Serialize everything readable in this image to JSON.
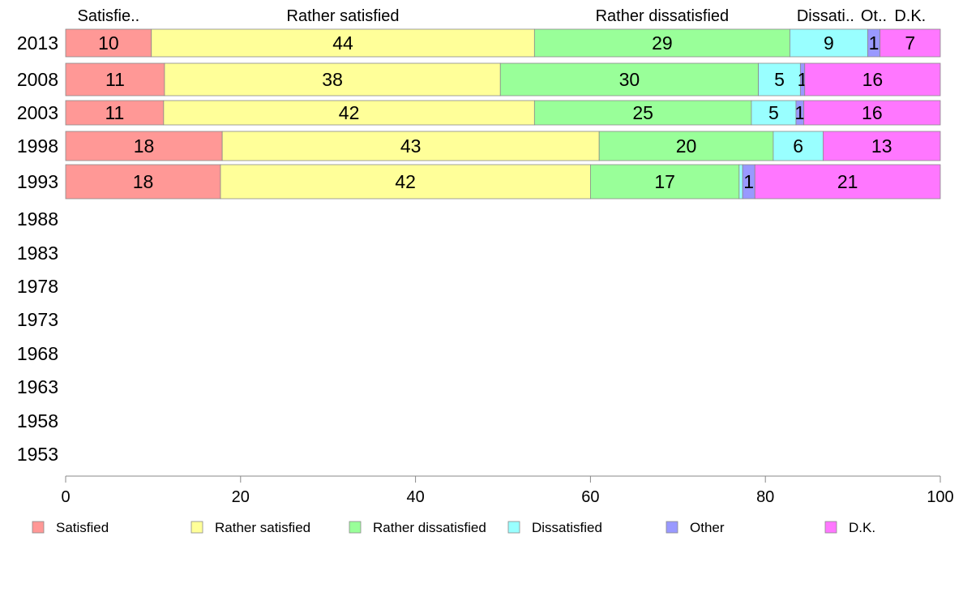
{
  "chart_data": {
    "type": "bar",
    "orientation": "horizontal",
    "stacked": true,
    "categories": [
      "2013",
      "2008",
      "2003",
      "1998",
      "1993",
      "1988",
      "1983",
      "1978",
      "1973",
      "1968",
      "1963",
      "1958",
      "1953"
    ],
    "top_labels": [
      {
        "text": "Satisfie..",
        "series": "Satisfied"
      },
      {
        "text": "Rather satisfied",
        "series": "Rather satisfied"
      },
      {
        "text": "Rather dissatisfied",
        "series": "Rather dissatisfied"
      },
      {
        "text": "Dissati..",
        "series": "Dissatisfied"
      },
      {
        "text": "Ot..",
        "series": "Other"
      },
      {
        "text": "D.K.",
        "series": "D.K."
      }
    ],
    "series": [
      {
        "name": "Satisfied",
        "color": "#ff9896",
        "values": [
          9.8,
          11.3,
          11.2,
          17.9,
          17.7,
          null,
          null,
          null,
          null,
          null,
          null,
          null,
          null
        ],
        "labels": [
          "10",
          "11",
          "11",
          "18",
          "18"
        ]
      },
      {
        "name": "Rather satisfied",
        "color": "#ffff99",
        "values": [
          43.8,
          38.4,
          42.4,
          43.1,
          42.3,
          null,
          null,
          null,
          null,
          null,
          null,
          null,
          null
        ],
        "labels": [
          "44",
          "38",
          "42",
          "43",
          "42"
        ]
      },
      {
        "name": "Rather dissatisfied",
        "color": "#99ff99",
        "values": [
          29.2,
          29.5,
          24.8,
          19.9,
          17.0,
          null,
          null,
          null,
          null,
          null,
          null,
          null,
          null
        ],
        "labels": [
          "29",
          "30",
          "25",
          "20",
          "17"
        ]
      },
      {
        "name": "Dissatisfied",
        "color": "#99ffff",
        "values": [
          8.9,
          4.8,
          5.1,
          5.7,
          0.4,
          null,
          null,
          null,
          null,
          null,
          null,
          null,
          null
        ],
        "labels": [
          "9",
          "5",
          "5",
          "6",
          ""
        ]
      },
      {
        "name": "Other",
        "color": "#9999ff",
        "values": [
          1.4,
          0.5,
          0.9,
          0.0,
          1.4,
          null,
          null,
          null,
          null,
          null,
          null,
          null,
          null
        ],
        "labels": [
          "1",
          "1",
          "1",
          "",
          "1"
        ]
      },
      {
        "name": "D.K.",
        "color": "#ff77ff",
        "values": [
          6.9,
          15.5,
          15.6,
          13.4,
          21.2,
          null,
          null,
          null,
          null,
          null,
          null,
          null,
          null
        ],
        "labels": [
          "7",
          "16",
          "16",
          "13",
          "21"
        ]
      }
    ],
    "xlim": [
      0,
      100
    ],
    "xticks": [
      "0",
      "20",
      "40",
      "60",
      "80",
      "100"
    ],
    "grid": false,
    "legend": {
      "position": "bottom"
    }
  }
}
